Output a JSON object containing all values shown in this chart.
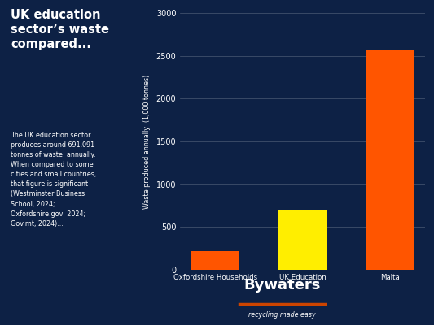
{
  "categories": [
    "Oxfordshire Households",
    "UK Education",
    "Malta"
  ],
  "values": [
    220,
    691,
    2570
  ],
  "bar_colors": [
    "#FF5500",
    "#FFEE00",
    "#FF5500"
  ],
  "ylabel": "Waste produced annually  (1,000 tonnes)",
  "ylim": [
    0,
    3000
  ],
  "yticks": [
    0,
    500,
    1000,
    1500,
    2000,
    2500,
    3000
  ],
  "bg_color": "#0d2145",
  "grid_color": "#ffffff",
  "tick_color": "#ffffff",
  "label_color": "#ffffff",
  "title_text": "UK education\nsector’s waste\ncompared...",
  "body_text": "The UK education sector\nproduces around 691,091\ntonnes of waste  annually.\nWhen compared to some\ncities and small countries,\nthat figure is significant\n(Westminster Business\nSchool, 2024;\nOxfordshire.gov, 2024;\nGov.mt, 2024)...",
  "brand_name": "Bywaters",
  "brand_sub": "recycling made easy",
  "brand_line_color": "#CC4400"
}
